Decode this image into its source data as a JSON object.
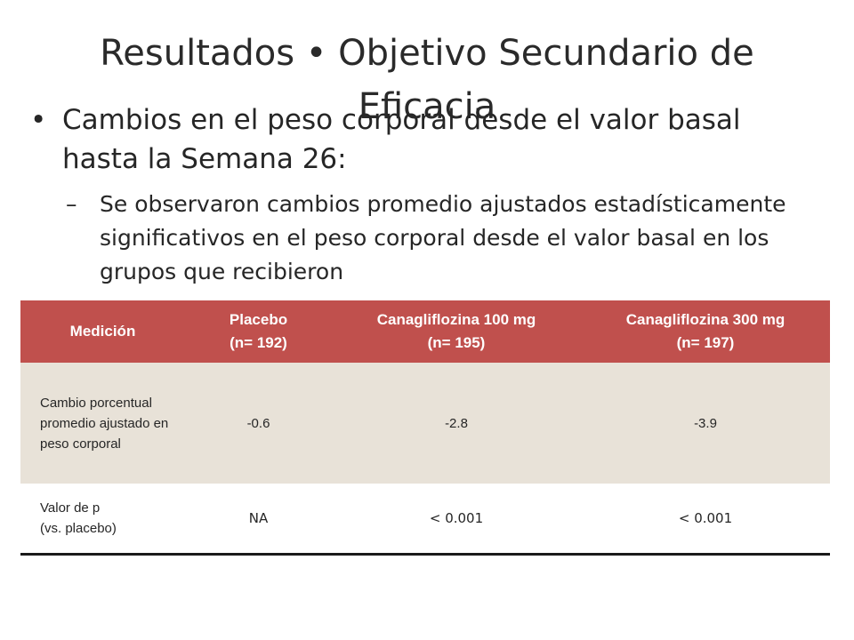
{
  "title": "Resultados • Objetivo Secundario de Eficacia",
  "bullets": {
    "level1_marker": "•",
    "level1_text": "Cambios en el peso corporal desde el valor basal hasta la Semana 26:",
    "level2_marker": "–",
    "level2_text": "Se observaron cambios promedio ajustados estadísticamente significativos en el peso corporal desde el valor basal en los grupos que recibieron"
  },
  "table": {
    "headers": [
      {
        "line1": "Medición",
        "line2": ""
      },
      {
        "line1": "Placebo",
        "line2": "(n= 192)"
      },
      {
        "line1": "Canagliflozina 100 mg",
        "line2": "(n= 195)"
      },
      {
        "line1": "Canagliflozina 300 mg",
        "line2": "(n= 197)"
      }
    ],
    "rows": [
      {
        "label": "Cambio porcentual promedio ajustado en peso corporal",
        "values": [
          "-0.6",
          "-2.8",
          "-3.9"
        ]
      },
      {
        "label_line1": "Valor de p",
        "label_line2": "(vs. placebo)",
        "values": [
          "NA",
          "< 0.001",
          "< 0.001"
        ]
      }
    ]
  },
  "colors": {
    "header_bg": "#c0504d",
    "shaded_row_bg": "#e8e2d8",
    "text": "#262626"
  }
}
